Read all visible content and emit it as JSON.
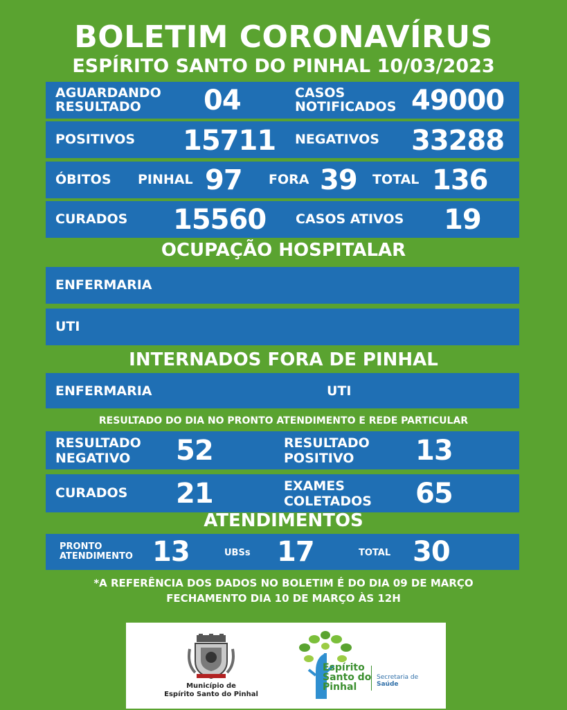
{
  "header": {
    "title": "BOLETIM CORONAVÍRUS",
    "subtitle": "ESPÍRITO SANTO DO PINHAL 10/03/2023"
  },
  "summary": {
    "aguardando_label_1": "AGUARDANDO",
    "aguardando_label_2": "RESULTADO",
    "aguardando_value": "04",
    "casos_label_1": "CASOS",
    "casos_label_2": "NOTIFICADOS",
    "casos_value": "49000",
    "positivos_label": "POSITIVOS",
    "positivos_value": "15711",
    "negativos_label": "NEGATIVOS",
    "negativos_value": "33288",
    "obitos_label": "ÓBITOS",
    "obitos_pinhal_label": "PINHAL",
    "obitos_pinhal_value": "97",
    "obitos_fora_label": "FORA",
    "obitos_fora_value": "39",
    "obitos_total_label": "TOTAL",
    "obitos_total_value": "136",
    "curados_label": "CURADOS",
    "curados_value": "15560",
    "ativos_label": "CASOS ATIVOS",
    "ativos_value": "19"
  },
  "hospital": {
    "title": "OCUPAÇÃO HOSPITALAR",
    "enfermaria_label": "ENFERMARIA",
    "uti_label": "UTI"
  },
  "fora": {
    "title": "INTERNADOS FORA DE PINHAL",
    "enfermaria_label": "ENFERMARIA",
    "uti_label": "UTI"
  },
  "dia": {
    "title": "RESULTADO DO DIA NO PRONTO ATENDIMENTO E REDE PARTICULAR",
    "neg_label_1": "RESULTADO",
    "neg_label_2": "NEGATIVO",
    "neg_value": "52",
    "pos_label_1": "RESULTADO",
    "pos_label_2": "POSITIVO",
    "pos_value": "13",
    "curados_label": "CURADOS",
    "curados_value": "21",
    "exames_label_1": "EXAMES",
    "exames_label_2": "COLETADOS",
    "exames_value": "65"
  },
  "atendimentos": {
    "title": "ATENDIMENTOS",
    "pronto_label_1": "PRONTO",
    "pronto_label_2": "ATENDIMENTO",
    "pronto_value": "13",
    "ubs_label": "UBSs",
    "ubs_value": "17",
    "total_label": "TOTAL",
    "total_value": "30"
  },
  "notes": {
    "line1": "*A REFERÊNCIA DOS DADOS NO BOLETIM É DO DIA 09 DE MARÇO",
    "line2": "FECHAMENTO DIA 10 DE MARÇO ÀS 12H"
  },
  "footer": {
    "municipio_1": "Município de",
    "municipio_2": "Espírito Santo do Pinhal",
    "logo_line_1": "Espírito",
    "logo_line_2": "Santo do",
    "logo_line_3": "Pinhal",
    "secretaria_1": "Secretaria de",
    "secretaria_2": "Saúde"
  },
  "colors": {
    "background": "#5aa330",
    "bar": "#1f6fb4"
  }
}
